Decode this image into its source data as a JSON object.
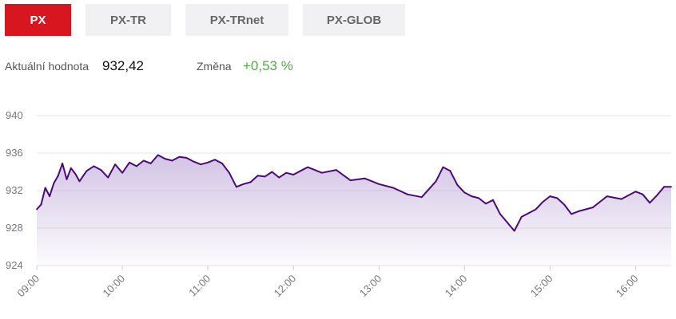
{
  "tabs": [
    {
      "label": "PX",
      "active": true
    },
    {
      "label": "PX-TR",
      "active": false
    },
    {
      "label": "PX-TRnet",
      "active": false
    },
    {
      "label": "PX-GLOB",
      "active": false
    }
  ],
  "info": {
    "value_label": "Aktuální hodnota",
    "value": "932,42",
    "change_label": "Změna",
    "change": "+0,53 %"
  },
  "colors": {
    "accent": "#d8161f",
    "line": "#4b0a78",
    "change_positive": "#4caf3c",
    "tab_bg": "#f1f1f3"
  },
  "chart_data": {
    "type": "area",
    "y_ticks": [
      "940",
      "936",
      "932",
      "928",
      "924"
    ],
    "x_ticks": [
      "09:00",
      "10:00",
      "11:00",
      "12:00",
      "13:00",
      "14:00",
      "15:00",
      "16:00"
    ],
    "ylim": [
      924,
      940
    ],
    "xlim": [
      "09:00",
      "16:25"
    ],
    "grid": true,
    "series": [
      {
        "x": [
          "09:00",
          "09:03",
          "09:06",
          "09:09",
          "09:12",
          "09:15",
          "09:18",
          "09:21",
          "09:24",
          "09:27",
          "09:30",
          "09:35",
          "09:40",
          "09:45",
          "09:50",
          "09:55",
          "10:00",
          "10:05",
          "10:10",
          "10:15",
          "10:20",
          "10:25",
          "10:30",
          "10:35",
          "10:40",
          "10:45",
          "10:50",
          "10:55",
          "11:00",
          "11:05",
          "11:10",
          "11:15",
          "11:20",
          "11:25",
          "11:30",
          "11:35",
          "11:40",
          "11:45",
          "11:50",
          "11:55",
          "12:00",
          "12:10",
          "12:20",
          "12:30",
          "12:40",
          "12:50",
          "13:00",
          "13:10",
          "13:20",
          "13:30",
          "13:40",
          "13:45",
          "13:50",
          "13:55",
          "14:00",
          "14:05",
          "14:10",
          "14:15",
          "14:20",
          "14:25",
          "14:30",
          "14:35",
          "14:40",
          "14:45",
          "14:50",
          "14:55",
          "15:00",
          "15:05",
          "15:10",
          "15:15",
          "15:20",
          "15:30",
          "15:40",
          "15:50",
          "16:00",
          "16:05",
          "16:10",
          "16:15",
          "16:20",
          "16:25"
        ],
        "values": [
          930.0,
          930.5,
          932.3,
          931.4,
          932.8,
          933.6,
          934.9,
          933.2,
          934.4,
          933.8,
          933.0,
          934.1,
          934.6,
          934.2,
          933.4,
          934.8,
          933.9,
          935.0,
          934.6,
          935.2,
          934.9,
          935.8,
          935.4,
          935.2,
          935.6,
          935.5,
          935.1,
          934.8,
          935.0,
          935.3,
          934.9,
          933.9,
          932.4,
          932.7,
          932.9,
          933.6,
          933.5,
          934.0,
          933.4,
          933.9,
          933.7,
          934.5,
          933.9,
          934.2,
          933.1,
          933.3,
          932.7,
          932.3,
          931.6,
          931.3,
          933.0,
          934.5,
          934.1,
          932.6,
          931.8,
          931.4,
          931.2,
          930.6,
          931.0,
          929.5,
          928.6,
          927.7,
          929.2,
          929.6,
          930.0,
          930.8,
          931.4,
          931.2,
          930.5,
          929.5,
          929.8,
          930.2,
          931.4,
          931.1,
          931.9,
          931.6,
          930.7,
          931.5,
          932.4,
          932.4
        ]
      }
    ]
  }
}
